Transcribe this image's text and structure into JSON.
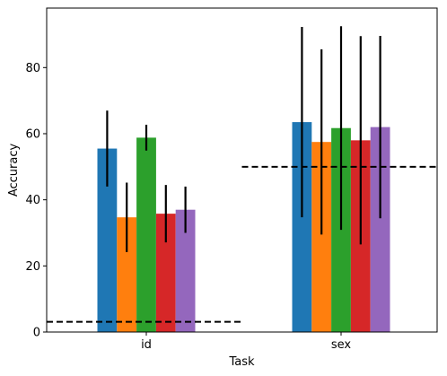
{
  "chart_data": {
    "type": "bar",
    "categories": [
      "id",
      "sex"
    ],
    "xlabel": "Task",
    "ylabel": "Accuracy",
    "ylim": [
      0,
      98
    ],
    "yticks": [
      0,
      20,
      40,
      60,
      80
    ],
    "grid": false,
    "colors": [
      "#1f77b4",
      "#ff7f0e",
      "#2ca02c",
      "#d62728",
      "#9467bd"
    ],
    "series": [
      {
        "values": [
          55.5,
          63.5
        ],
        "errors": [
          11.5,
          28.8
        ]
      },
      {
        "values": [
          34.7,
          57.5
        ],
        "errors": [
          10.5,
          28.0
        ]
      },
      {
        "values": [
          58.8,
          61.7
        ],
        "errors": [
          3.9,
          30.8
        ]
      },
      {
        "values": [
          35.8,
          58.0
        ],
        "errors": [
          8.7,
          31.5
        ]
      },
      {
        "values": [
          37.0,
          62.0
        ],
        "errors": [
          7.0,
          27.6
        ]
      }
    ],
    "reference_lines": [
      {
        "category": "id",
        "value": 3.1
      },
      {
        "category": "sex",
        "value": 50.0
      }
    ]
  }
}
